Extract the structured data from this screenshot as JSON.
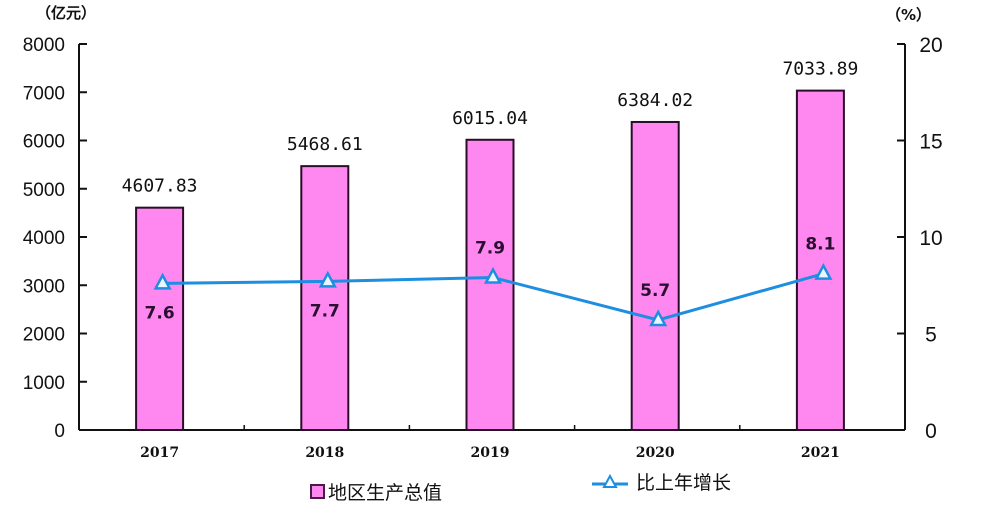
{
  "chart_data": {
    "type": "bar",
    "title": "",
    "categories": [
      "2017",
      "2018",
      "2019",
      "2020",
      "2021"
    ],
    "series": [
      {
        "name": "地区生产总值",
        "type": "bar",
        "axis": "left",
        "unit": "亿元",
        "color": "#ff88f0",
        "values": [
          4607.83,
          5468.61,
          6015.04,
          6384.02,
          7033.89
        ],
        "labels": [
          "4607.83",
          "5468.61",
          "6015.04",
          "6384.02",
          "7033.89"
        ]
      },
      {
        "name": "比上年增长",
        "type": "line",
        "axis": "right",
        "unit": "%",
        "color": "#1e8ee0",
        "values": [
          7.6,
          7.7,
          7.9,
          5.7,
          8.1
        ],
        "labels": [
          "7.6",
          "7.7",
          "7.9",
          "5.7",
          "8.1"
        ]
      }
    ],
    "left_axis": {
      "label": "（亿元）",
      "ylim": [
        0,
        8000
      ],
      "ticks": [
        "0",
        "1000",
        "2000",
        "3000",
        "4000",
        "5000",
        "6000",
        "7000",
        "8000"
      ]
    },
    "right_axis": {
      "label": "（%）",
      "ylim": [
        0,
        20
      ],
      "ticks": [
        "0",
        "5",
        "10",
        "15",
        "20"
      ]
    },
    "xlabel": "",
    "grid": false,
    "legend_position": "bottom"
  },
  "legend": {
    "bar_label": "地区生产总值",
    "line_label": "比上年增长"
  }
}
